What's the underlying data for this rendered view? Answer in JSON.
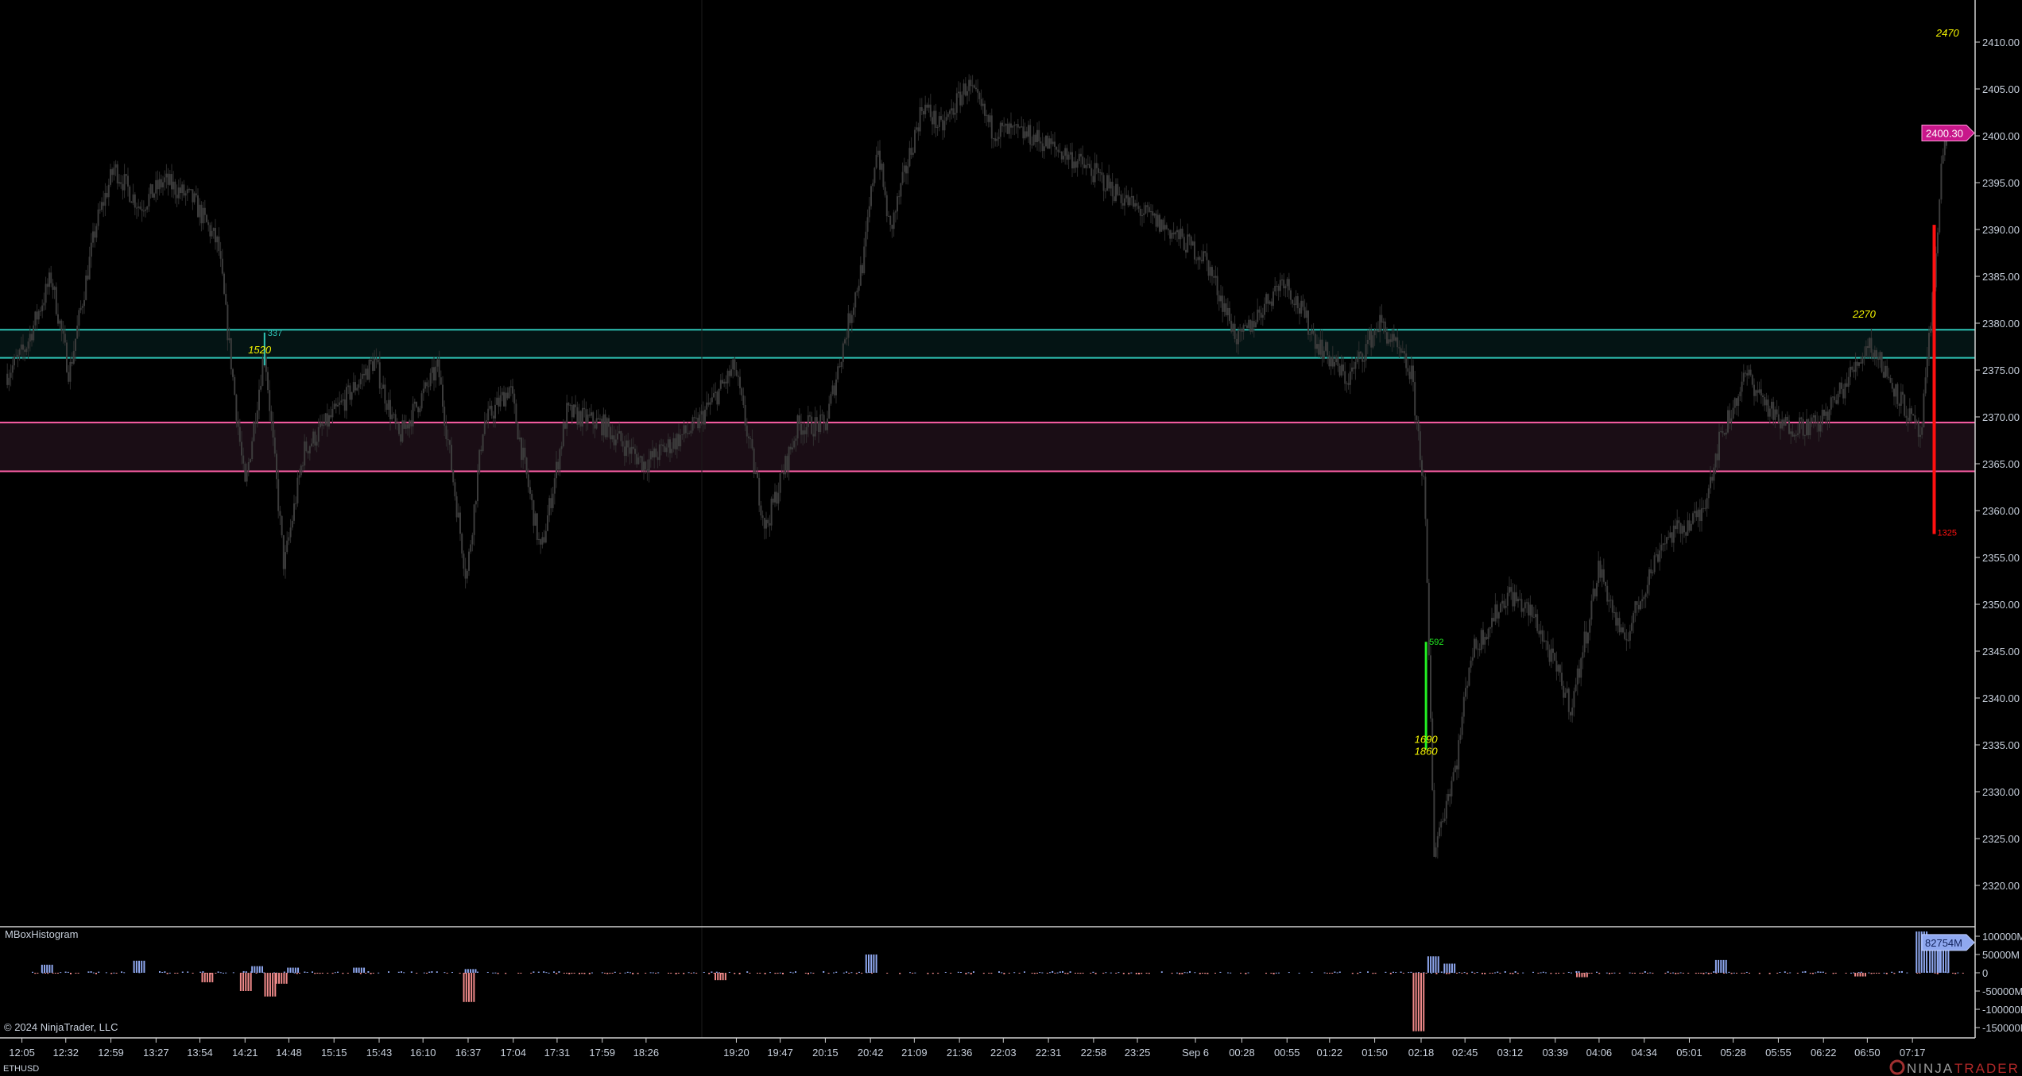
{
  "instrument": "ETHUSD",
  "copyright": "© 2024 NinjaTrader, LLC",
  "brand": {
    "part1": "NINJA",
    "part2": "TRADER"
  },
  "indicator_panel": {
    "title": "MBoxHistogram",
    "current_value_label": "82754M",
    "axis_labels": [
      "100000M",
      "50000M",
      "0",
      "-50000M",
      "-100000M",
      "-150000M"
    ]
  },
  "price_axis": {
    "labels": [
      "2410.00",
      "2405.00",
      "2400.00",
      "2395.00",
      "2390.00",
      "2385.00",
      "2380.00",
      "2375.00",
      "2370.00",
      "2365.00",
      "2360.00",
      "2355.00",
      "2350.00",
      "2345.00",
      "2340.00",
      "2335.00",
      "2330.00",
      "2325.00",
      "2320.00"
    ],
    "current_price_label": "2400.30",
    "current_price": 2400.3
  },
  "time_axis": {
    "labels": [
      "12:05",
      "12:32",
      "12:59",
      "13:27",
      "13:54",
      "14:21",
      "14:48",
      "15:15",
      "15:43",
      "16:10",
      "16:37",
      "17:04",
      "17:31",
      "17:59",
      "18:26",
      "19:20",
      "19:47",
      "20:15",
      "20:42",
      "21:09",
      "21:36",
      "22:03",
      "22:31",
      "22:58",
      "23:25",
      "Sep 6",
      "00:28",
      "00:55",
      "01:22",
      "01:50",
      "02:18",
      "02:45",
      "03:12",
      "03:39",
      "04:06",
      "04:34",
      "05:01",
      "05:28",
      "05:55",
      "06:22",
      "06:50",
      "07:17"
    ]
  },
  "colors": {
    "background": "#000000",
    "candles": "#3c3c3c",
    "resistance_zone": "#2ec4b6",
    "support_zone": "#ff5fa8",
    "current_price_tag": "#c8178a",
    "hist_positive": "#8fa8f0",
    "hist_negative": "#f08a8a",
    "annot_yellow": "#f5f500",
    "annot_green": "#22ee22",
    "annot_red": "#ff1010"
  },
  "chart_data": {
    "type": "candlestick",
    "price_range": [
      2317,
      2412
    ],
    "zones": [
      {
        "type": "resistance",
        "low": 2376.3,
        "high": 2379.3,
        "color": "#2ec4b6"
      },
      {
        "type": "support",
        "low": 2364.2,
        "high": 2369.4,
        "color": "#ff5fa8"
      }
    ],
    "price_path": [
      [
        "11:56",
        2374.6
      ],
      [
        "12:07",
        2377.3
      ],
      [
        "12:23",
        2384.9
      ],
      [
        "12:34",
        2374.6
      ],
      [
        "12:50",
        2390.4
      ],
      [
        "13:01",
        2396.6
      ],
      [
        "13:17",
        2392.4
      ],
      [
        "13:32",
        2395.2
      ],
      [
        "13:50",
        2393.1
      ],
      [
        "14:05",
        2388.3
      ],
      [
        "14:21",
        2362.3
      ],
      [
        "14:33",
        2377.3
      ],
      [
        "14:45",
        2354.0
      ],
      [
        "14:57",
        2366.4
      ],
      [
        "15:16",
        2370.5
      ],
      [
        "15:40",
        2376.0
      ],
      [
        "15:55",
        2367.7
      ],
      [
        "16:19",
        2375.3
      ],
      [
        "16:36",
        2352.7
      ],
      [
        "16:46",
        2369.1
      ],
      [
        "17:02",
        2373.2
      ],
      [
        "17:21",
        2355.4
      ],
      [
        "17:37",
        2370.5
      ],
      [
        "18:00",
        2369.1
      ],
      [
        "18:25",
        2365.0
      ],
      [
        "18:56",
        2369.1
      ],
      [
        "19:19",
        2375.3
      ],
      [
        "19:38",
        2358.1
      ],
      [
        "19:58",
        2369.1
      ],
      [
        "20:15",
        2369.1
      ],
      [
        "20:27",
        2378.7
      ],
      [
        "20:38",
        2386.9
      ],
      [
        "20:46",
        2399.3
      ],
      [
        "20:54",
        2389.7
      ],
      [
        "21:14",
        2403.4
      ],
      [
        "21:25",
        2400.7
      ],
      [
        "21:41",
        2405.5
      ],
      [
        "21:56",
        2400.7
      ],
      [
        "22:20",
        2400.0
      ],
      [
        "22:43",
        2397.9
      ],
      [
        "22:59",
        2395.9
      ],
      [
        "23:23",
        2392.4
      ],
      [
        "23:46",
        2389.7
      ],
      [
        "00:06",
        2386.9
      ],
      [
        "00:26",
        2378.0
      ],
      [
        "00:53",
        2384.9
      ],
      [
        "01:14",
        2378.0
      ],
      [
        "01:33",
        2373.9
      ],
      [
        "01:53",
        2380.1
      ],
      [
        "02:12",
        2374.6
      ],
      [
        "02:20",
        2362.3
      ],
      [
        "02:26",
        2323.8
      ],
      [
        "02:40",
        2333.4
      ],
      [
        "02:48",
        2344.4
      ],
      [
        "03:11",
        2351.3
      ],
      [
        "03:27",
        2348.5
      ],
      [
        "03:49",
        2338.9
      ],
      [
        "04:06",
        2354.0
      ],
      [
        "04:21",
        2345.8
      ],
      [
        "04:45",
        2356.8
      ],
      [
        "05:08",
        2359.5
      ],
      [
        "05:20",
        2367.7
      ],
      [
        "05:36",
        2374.6
      ],
      [
        "05:56",
        2369.1
      ],
      [
        "06:19",
        2369.1
      ],
      [
        "06:35",
        2373.2
      ],
      [
        "06:51",
        2378.0
      ],
      [
        "07:06",
        2373.2
      ],
      [
        "07:22",
        2367.7
      ],
      [
        "07:30",
        2384.2
      ],
      [
        "07:34",
        2396.6
      ],
      [
        "07:38",
        2400.3
      ]
    ],
    "annotations": [
      {
        "text": "337",
        "time": "14:33",
        "price_top": 2379.0,
        "price_bottom": 2375.5,
        "color": "#2ec4b6"
      },
      {
        "text": "1520",
        "time": "14:30",
        "price": 2376.8,
        "color": "#f5f500"
      },
      {
        "text": "592",
        "time": "02:21",
        "price_top": 2346.0,
        "price_bottom": 2334.5,
        "color": "#22ee22"
      },
      {
        "text": "1690",
        "time": "02:21",
        "price": 2335.2,
        "color": "#f5f500"
      },
      {
        "text": "1860",
        "time": "02:21",
        "price": 2334.5,
        "color": "#f5f500"
      },
      {
        "text": "1325",
        "time": "07:30",
        "price_top": 2390.5,
        "price_bottom": 2357.5,
        "color": "#ff1010"
      },
      {
        "text": "2270",
        "time": "06:48",
        "price": 2380.6,
        "color": "#f5f500"
      },
      {
        "text": "2470",
        "time": "07:38",
        "price": 2410.6,
        "color": "#f5f500"
      }
    ],
    "histogram": {
      "unit": "M",
      "range": [
        -165000,
        110000
      ],
      "bars": [
        [
          "12:20",
          22000
        ],
        [
          "13:16",
          33000
        ],
        [
          "13:58",
          -26000
        ],
        [
          "14:21",
          -50000
        ],
        [
          "14:28",
          18000
        ],
        [
          "14:36",
          -65000
        ],
        [
          "14:43",
          -30000
        ],
        [
          "14:50",
          14000
        ],
        [
          "15:30",
          14000
        ],
        [
          "16:37",
          -80000
        ],
        [
          "16:38",
          10000
        ],
        [
          "19:10",
          -20000
        ],
        [
          "20:42",
          50000
        ],
        [
          "02:16",
          -160000
        ],
        [
          "02:25",
          45000
        ],
        [
          "02:35",
          25000
        ],
        [
          "03:55",
          -12000
        ],
        [
          "05:20",
          35000
        ],
        [
          "06:45",
          -10000
        ],
        [
          "07:22",
          113000
        ],
        [
          "07:30",
          82754
        ],
        [
          "07:35",
          80000
        ]
      ]
    }
  }
}
